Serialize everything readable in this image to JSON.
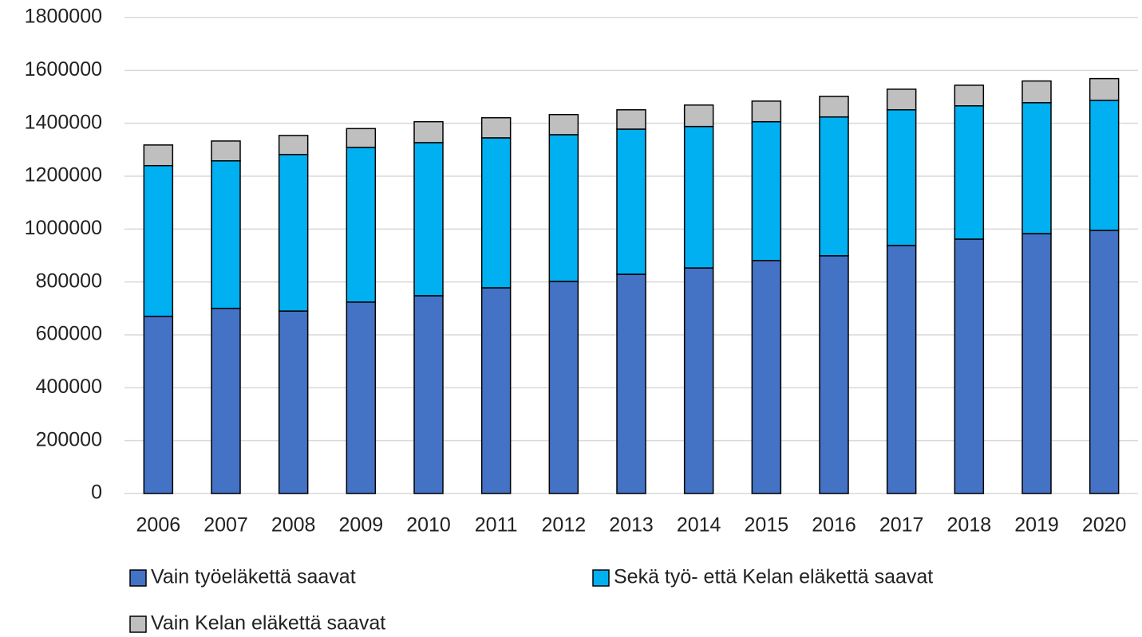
{
  "chart_data": {
    "type": "stacked_bar",
    "categories": [
      "2006",
      "2007",
      "2008",
      "2009",
      "2010",
      "2011",
      "2012",
      "2013",
      "2014",
      "2015",
      "2016",
      "2017",
      "2018",
      "2019",
      "2020"
    ],
    "series": [
      {
        "name": "Vain työeläkettä saavat",
        "color": "#4472c4",
        "values": [
          670000,
          700000,
          690000,
          724000,
          748000,
          778000,
          802000,
          829000,
          853000,
          881000,
          899000,
          938000,
          962000,
          983000,
          995000
        ]
      },
      {
        "name": "Sekä työ- että Kelan eläkettä saavat",
        "color": "#00b0f0",
        "values": [
          570000,
          558000,
          592000,
          585000,
          579000,
          567000,
          555000,
          549000,
          535000,
          525000,
          525000,
          513000,
          504000,
          495000,
          492000
        ]
      },
      {
        "name": "Vain Kelan eläkettä saavat",
        "color": "#bfbfbf",
        "values": [
          78000,
          75000,
          72000,
          71000,
          79000,
          76000,
          76000,
          73000,
          81000,
          78000,
          78000,
          78000,
          78000,
          82000,
          82000
        ]
      }
    ],
    "ylim": [
      0,
      1800000
    ],
    "yticks": [
      0,
      200000,
      400000,
      600000,
      800000,
      1000000,
      1200000,
      1400000,
      1600000,
      1800000
    ],
    "grid": true
  }
}
